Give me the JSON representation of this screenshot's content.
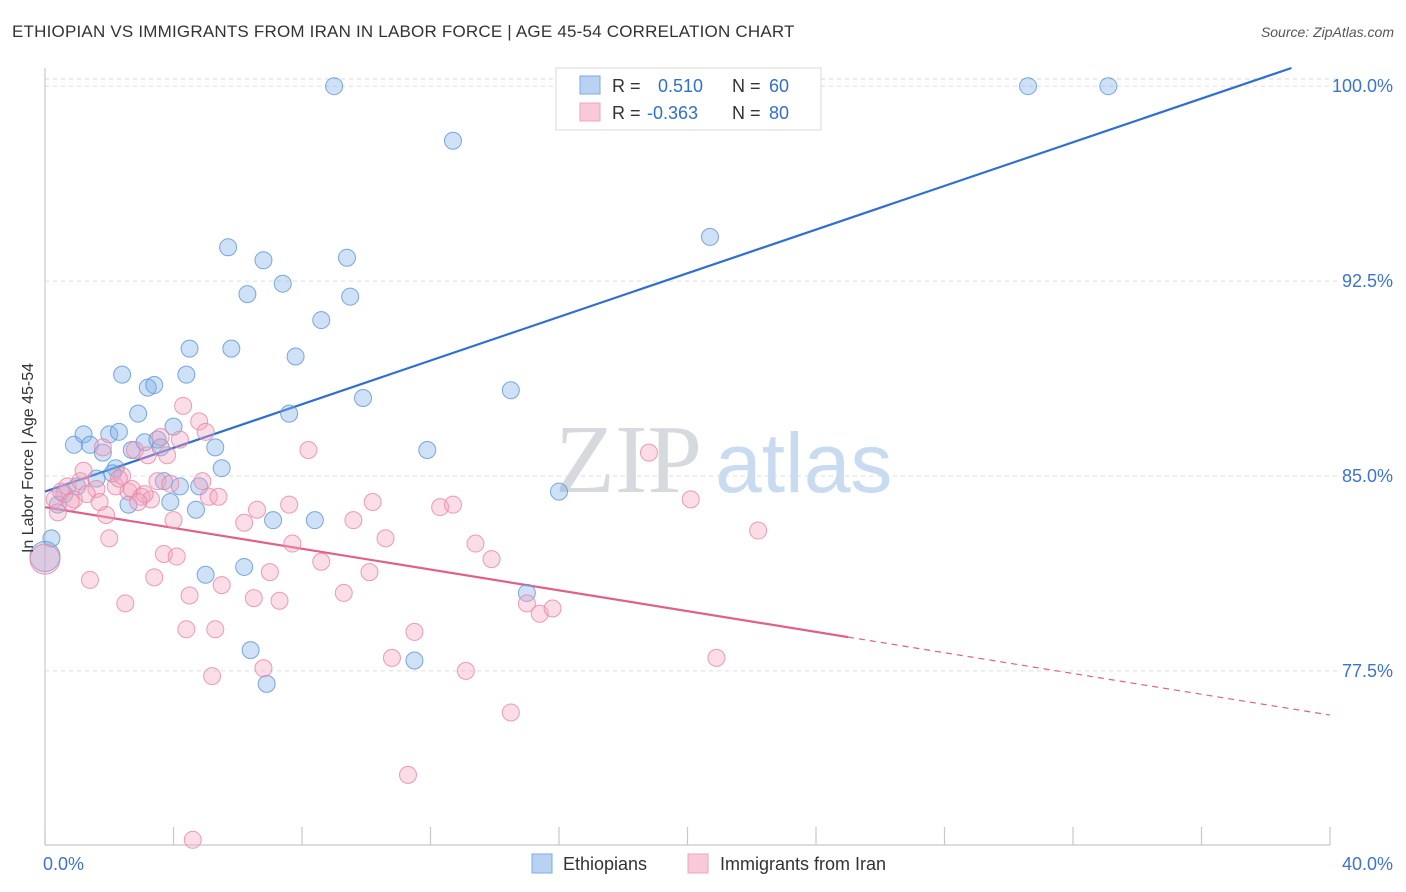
{
  "title": "ETHIOPIAN VS IMMIGRANTS FROM IRAN IN LABOR FORCE | AGE 45-54 CORRELATION CHART",
  "source": "Source: ZipAtlas.com",
  "watermark": {
    "zip": "ZIP",
    "atlas": "atlas"
  },
  "legend_box": {
    "rows": [
      {
        "r_label": "R =",
        "r_value": "0.510",
        "n_label": "N =",
        "n_value": "60",
        "color": "#7fb0e8"
      },
      {
        "r_label": "R =",
        "r_value": "-0.363",
        "n_label": "N =",
        "n_value": "80",
        "color": "#f3a6bf"
      }
    ]
  },
  "chart_data": {
    "type": "scatter",
    "title": "ETHIOPIAN VS IMMIGRANTS FROM IRAN IN LABOR FORCE | AGE 45-54 CORRELATION CHART",
    "xlabel": "",
    "ylabel": "In Labor Force | Age 45-54",
    "xlim": [
      0,
      40
    ],
    "ylim": [
      70.8,
      100.7
    ],
    "x_tick_labels": [
      "0.0%",
      "40.0%"
    ],
    "y_ticks": [
      77.5,
      85.0,
      92.5,
      100.0
    ],
    "y_tick_labels": [
      "77.5%",
      "85.0%",
      "92.5%",
      "100.0%"
    ],
    "grid": true,
    "legend_position": "bottom-center",
    "series": [
      {
        "name": "Ethiopians",
        "color": "#7fb0e8",
        "stroke": "#5b93d8",
        "trend": {
          "x": [
            0.0,
            38.8
          ],
          "y": [
            84.4,
            100.7
          ],
          "dashed_to": null,
          "color": "#2f6fd0"
        },
        "points": [
          [
            0.2,
            82.6
          ],
          [
            0.4,
            83.9
          ],
          [
            0.9,
            86.2
          ],
          [
            1.2,
            86.6
          ],
          [
            1.4,
            86.2
          ],
          [
            1.6,
            84.9
          ],
          [
            1.8,
            85.9
          ],
          [
            2.0,
            86.6
          ],
          [
            2.2,
            85.3
          ],
          [
            2.3,
            86.7
          ],
          [
            2.4,
            88.9
          ],
          [
            2.6,
            83.9
          ],
          [
            2.7,
            86.0
          ],
          [
            2.9,
            87.4
          ],
          [
            3.1,
            86.3
          ],
          [
            3.2,
            88.4
          ],
          [
            3.4,
            88.5
          ],
          [
            3.5,
            86.4
          ],
          [
            3.7,
            84.8
          ],
          [
            3.9,
            84.0
          ],
          [
            4.0,
            86.9
          ],
          [
            4.2,
            84.6
          ],
          [
            4.4,
            88.9
          ],
          [
            4.5,
            89.9
          ],
          [
            4.7,
            83.7
          ],
          [
            4.8,
            84.6
          ],
          [
            5.0,
            81.2
          ],
          [
            5.3,
            86.1
          ],
          [
            5.5,
            85.3
          ],
          [
            5.7,
            93.8
          ],
          [
            5.8,
            89.9
          ],
          [
            6.2,
            81.5
          ],
          [
            6.3,
            92.0
          ],
          [
            6.4,
            78.3
          ],
          [
            6.8,
            93.3
          ],
          [
            6.9,
            77.0
          ],
          [
            7.1,
            83.3
          ],
          [
            7.4,
            92.4
          ],
          [
            7.6,
            87.4
          ],
          [
            7.8,
            89.6
          ],
          [
            8.4,
            83.3
          ],
          [
            8.6,
            91.0
          ],
          [
            9.0,
            100.0
          ],
          [
            9.4,
            93.4
          ],
          [
            9.5,
            91.9
          ],
          [
            9.9,
            88.0
          ],
          [
            11.5,
            77.9
          ],
          [
            11.9,
            86.0
          ],
          [
            12.7,
            97.9
          ],
          [
            14.5,
            88.3
          ],
          [
            15.0,
            80.5
          ],
          [
            16.0,
            84.4
          ],
          [
            20.7,
            94.2
          ],
          [
            30.6,
            100.0
          ],
          [
            33.1,
            100.0
          ],
          [
            0.0,
            81.9
          ],
          [
            0.6,
            84.3
          ],
          [
            1.0,
            84.6
          ],
          [
            2.1,
            85.1
          ],
          [
            3.6,
            86.1
          ]
        ]
      },
      {
        "name": "Immigrants from Iran",
        "color": "#f3a6bf",
        "stroke": "#e884a5",
        "trend": {
          "x": [
            0.0,
            25.0
          ],
          "y": [
            83.8,
            78.8
          ],
          "dashed_to": [
            40.0,
            75.8
          ],
          "color": "#e0608c"
        },
        "points": [
          [
            0.0,
            81.8
          ],
          [
            0.3,
            84.1
          ],
          [
            0.5,
            84.4
          ],
          [
            0.7,
            84.6
          ],
          [
            0.9,
            84.1
          ],
          [
            1.1,
            84.8
          ],
          [
            1.4,
            81.0
          ],
          [
            1.6,
            84.5
          ],
          [
            1.8,
            86.1
          ],
          [
            1.9,
            83.5
          ],
          [
            2.0,
            82.6
          ],
          [
            2.2,
            84.6
          ],
          [
            2.4,
            85.0
          ],
          [
            2.5,
            80.1
          ],
          [
            2.6,
            84.4
          ],
          [
            2.7,
            84.5
          ],
          [
            2.8,
            86.0
          ],
          [
            3.0,
            84.2
          ],
          [
            3.2,
            85.8
          ],
          [
            3.3,
            84.1
          ],
          [
            3.4,
            81.1
          ],
          [
            3.5,
            84.8
          ],
          [
            3.6,
            86.5
          ],
          [
            3.7,
            82.0
          ],
          [
            3.8,
            85.8
          ],
          [
            4.0,
            83.3
          ],
          [
            4.1,
            81.9
          ],
          [
            4.2,
            86.4
          ],
          [
            4.3,
            87.7
          ],
          [
            4.4,
            79.1
          ],
          [
            4.5,
            80.4
          ],
          [
            4.6,
            71.0
          ],
          [
            4.8,
            87.1
          ],
          [
            4.9,
            84.8
          ],
          [
            5.0,
            86.7
          ],
          [
            5.1,
            84.2
          ],
          [
            5.2,
            77.3
          ],
          [
            5.3,
            79.1
          ],
          [
            5.5,
            80.8
          ],
          [
            6.2,
            83.2
          ],
          [
            6.5,
            80.3
          ],
          [
            6.6,
            83.7
          ],
          [
            6.8,
            77.6
          ],
          [
            7.0,
            81.3
          ],
          [
            7.3,
            80.2
          ],
          [
            7.6,
            83.9
          ],
          [
            7.7,
            82.4
          ],
          [
            8.2,
            86.0
          ],
          [
            8.6,
            81.7
          ],
          [
            9.3,
            80.5
          ],
          [
            9.6,
            83.3
          ],
          [
            10.1,
            81.3
          ],
          [
            10.2,
            84.0
          ],
          [
            10.6,
            82.6
          ],
          [
            10.8,
            78.0
          ],
          [
            11.3,
            73.5
          ],
          [
            11.5,
            79.0
          ],
          [
            12.3,
            83.8
          ],
          [
            12.7,
            83.9
          ],
          [
            13.1,
            77.5
          ],
          [
            13.4,
            82.4
          ],
          [
            13.9,
            81.8
          ],
          [
            14.5,
            75.9
          ],
          [
            15.0,
            80.1
          ],
          [
            15.4,
            79.7
          ],
          [
            15.8,
            79.9
          ],
          [
            18.8,
            85.9
          ],
          [
            20.1,
            84.1
          ],
          [
            20.9,
            78.0
          ],
          [
            22.2,
            82.9
          ],
          [
            0.8,
            84.0
          ],
          [
            1.3,
            84.3
          ],
          [
            2.3,
            84.9
          ],
          [
            3.1,
            84.3
          ],
          [
            1.2,
            85.2
          ],
          [
            2.9,
            84.0
          ],
          [
            3.9,
            84.7
          ],
          [
            5.4,
            84.2
          ],
          [
            0.4,
            83.6
          ],
          [
            1.7,
            84.0
          ]
        ]
      }
    ]
  }
}
